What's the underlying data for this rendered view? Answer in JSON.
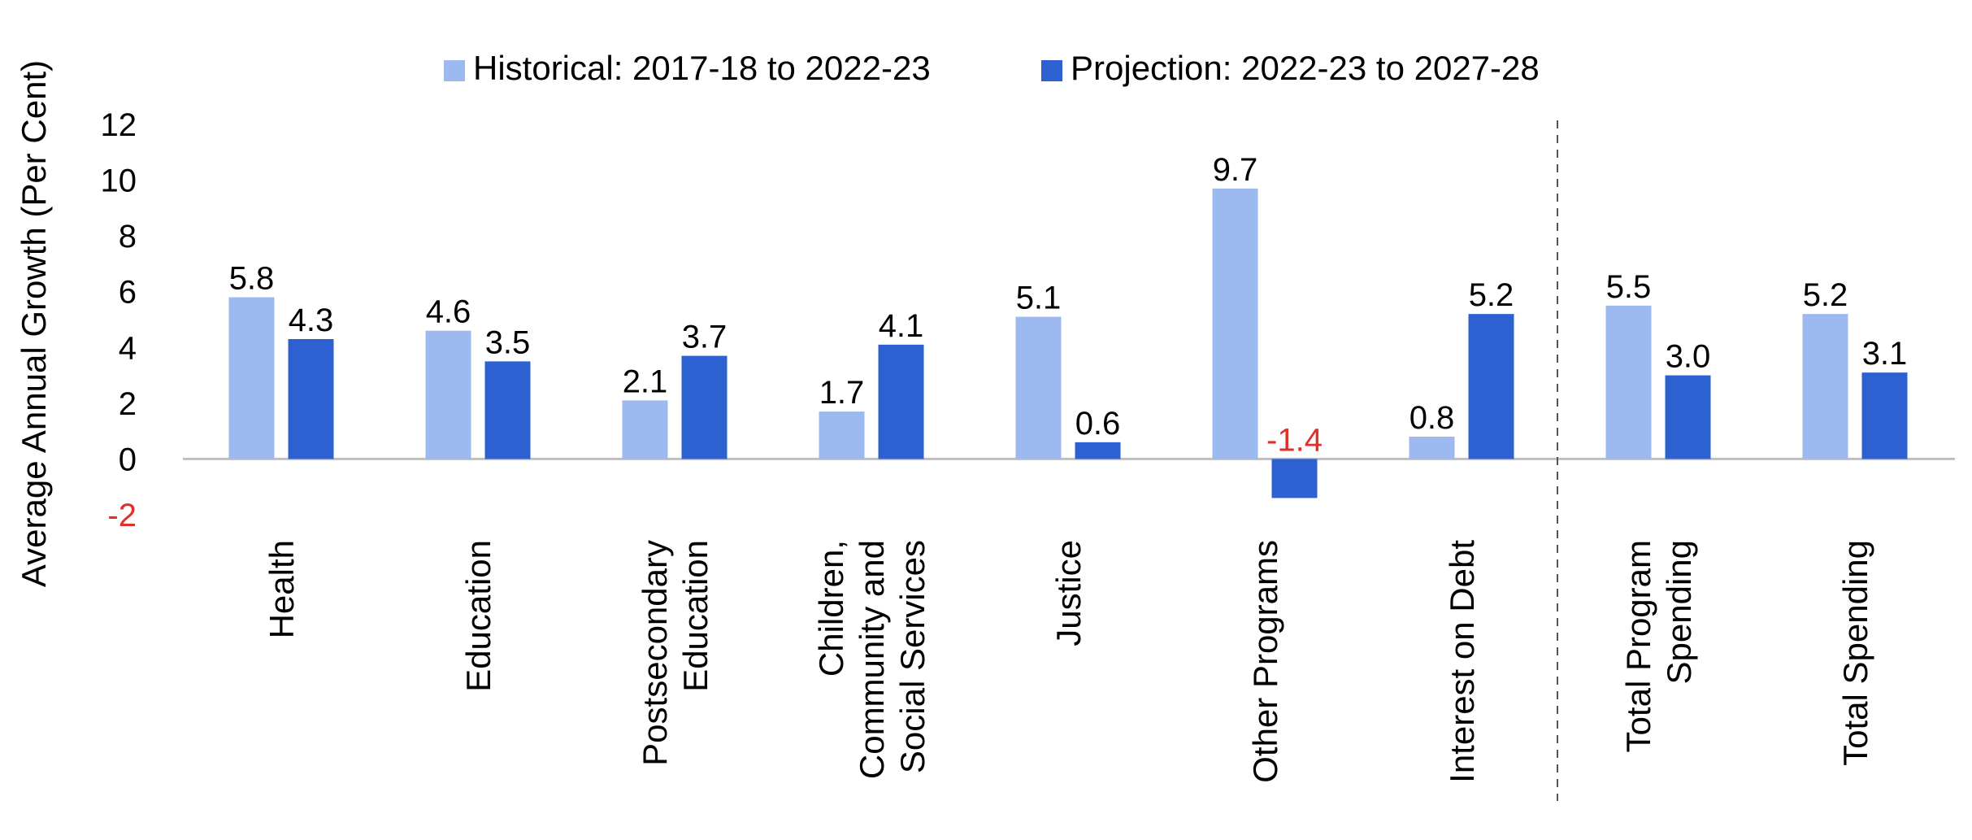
{
  "chart_data": {
    "type": "bar",
    "ylabel": "Average Annual Growth (Per Cent)",
    "ylim": [
      -2,
      12
    ],
    "yticks": [
      "12",
      "10",
      "8",
      "6",
      "4",
      "2",
      "0",
      "-2"
    ],
    "categories": [
      "Health",
      "Education",
      "Postsecondary\nEducation",
      "Children,\nCommunity and\nSocial Services",
      "Justice",
      "Other Programs",
      "Interest on Debt",
      "Total Program\nSpending",
      "Total Spending"
    ],
    "series": [
      {
        "name": "Historical: 2017-18 to 2022-23",
        "color": "#9dbaf0",
        "values": [
          5.8,
          4.6,
          2.1,
          1.7,
          5.1,
          9.7,
          0.8,
          5.5,
          5.2
        ],
        "labels": [
          "5.8",
          "4.6",
          "2.1",
          "1.7",
          "5.1",
          "9.7",
          "0.8",
          "5.5",
          "5.2"
        ]
      },
      {
        "name": "Projection: 2022-23 to 2027-28",
        "color": "#2d61d1",
        "values": [
          4.3,
          3.5,
          3.7,
          4.1,
          0.6,
          -1.4,
          5.2,
          3.0,
          3.1
        ],
        "labels": [
          "4.3",
          "3.5",
          "3.7",
          "4.1",
          "0.6",
          "-1.4",
          "5.2",
          "3.0",
          "3.1"
        ]
      }
    ],
    "negative_label_color": "#e0302a",
    "legend_position": "top-center",
    "grid": false,
    "separator": "dashed line between Interest on Debt and Total Program Spending"
  }
}
